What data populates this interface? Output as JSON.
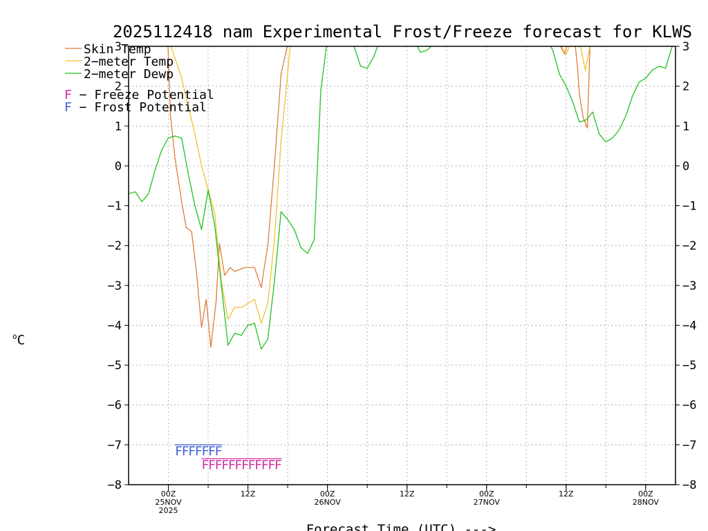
{
  "chart_data": {
    "type": "line",
    "title": "2025112418 nam Experimental Frost/Freeze forecast for KLWS",
    "xlabel": "Forecast Time (UTC) --->",
    "ylabel": "°C",
    "ylabel_parts": {
      "degree": "o",
      "unit": "C"
    },
    "ylim": [
      -8,
      3
    ],
    "y_ticks": [
      3,
      2,
      1,
      0,
      -1,
      -2,
      -3,
      -4,
      -5,
      -6,
      -7,
      -8
    ],
    "y_tick_labels": [
      "3",
      "2",
      "1",
      "0",
      "−1",
      "−2",
      "−3",
      "−4",
      "−5",
      "−6",
      "−7",
      "−8"
    ],
    "x_unit": "forecast hour from 2025-11-24 18Z",
    "xlim": [
      0,
      82.5
    ],
    "x_ticks": [
      {
        "hour": 6,
        "lines": [
          "00Z",
          "25NOV",
          "2025"
        ]
      },
      {
        "hour": 18,
        "lines": [
          "12Z"
        ]
      },
      {
        "hour": 30,
        "lines": [
          "00Z",
          "26NOV"
        ]
      },
      {
        "hour": 42,
        "lines": [
          "12Z"
        ]
      },
      {
        "hour": 54,
        "lines": [
          "00Z",
          "27NOV"
        ]
      },
      {
        "hour": 66,
        "lines": [
          "12Z"
        ]
      },
      {
        "hour": 78,
        "lines": [
          "00Z",
          "28NOV"
        ]
      }
    ],
    "grid": true,
    "legend": {
      "placement": "top-left",
      "entries": [
        {
          "label": "Skin Temp",
          "color": "#e07b39"
        },
        {
          "label": "2−meter Temp",
          "color": "#f2c12e"
        },
        {
          "label": "2−meter Dewp",
          "color": "#22c022"
        }
      ],
      "markers": [
        {
          "symbol": "F",
          "text": " − Freeze Potential",
          "color": "#d030a0"
        },
        {
          "symbol": "F",
          "text": " − Frost Potential",
          "color": "#4060d0"
        }
      ]
    },
    "series": [
      {
        "name": "Skin Temp",
        "color": "#e07b39",
        "x": [
          5.9,
          6.3,
          7,
          8,
          8.7,
          9.5,
          10.2,
          11,
          11.7,
          12.4,
          13.2,
          13.7,
          14.5,
          15.3,
          16,
          17.5,
          19,
          20,
          21,
          22,
          23,
          24.2,
          25,
          25.5
        ],
        "y": [
          3.2,
          1.3,
          0.2,
          -0.9,
          -1.55,
          -1.65,
          -2.6,
          -4.05,
          -3.35,
          -4.55,
          -3.4,
          -1.95,
          -2.75,
          -2.55,
          -2.65,
          -2.55,
          -2.55,
          -3.05,
          -2.0,
          0.0,
          2.3,
          3.2,
          3.2,
          3.2
        ],
        "segments": [
          {
            "x": [
              64.5,
              65.8,
              66.4
            ],
            "y": [
              3.2,
              2.8,
              3.2
            ]
          },
          {
            "x": [
              67.0,
              67.4,
              67.7,
              68.0,
              68.6,
              69.2,
              69.6
            ],
            "y": [
              3.2,
              3.0,
              2.5,
              1.8,
              1.2,
              0.95,
              3.0
            ]
          }
        ]
      },
      {
        "name": "2-meter Temp",
        "color": "#f2c12e",
        "x": [
          6,
          7,
          8,
          9,
          10,
          11,
          12,
          13,
          14,
          15,
          16,
          17,
          18,
          19,
          20,
          21,
          22,
          23,
          24.5,
          25.5
        ],
        "y": [
          3.2,
          2.7,
          2.2,
          1.5,
          0.8,
          0.0,
          -0.6,
          -1.2,
          -2.9,
          -3.85,
          -3.55,
          -3.55,
          -3.45,
          -3.35,
          -3.95,
          -3.45,
          -1.85,
          0.6,
          3.2,
          3.2
        ],
        "segments": [
          {
            "x": [
              64.5,
              66.0,
              67.0
            ],
            "y": [
              3.2,
              2.8,
              3.2
            ]
          },
          {
            "x": [
              67.6,
              68.3,
              68.9,
              69.6
            ],
            "y": [
              3.2,
              2.9,
              2.4,
              3.0
            ]
          }
        ]
      },
      {
        "name": "2-meter Dewp",
        "color": "#22c022",
        "x": [
          0,
          1,
          2,
          3,
          4,
          5,
          6,
          7,
          8,
          9,
          10,
          11,
          12,
          13,
          14,
          15,
          16,
          17,
          18,
          19,
          20,
          21,
          22,
          23,
          24,
          25,
          26,
          27,
          28,
          29,
          30,
          31,
          32,
          33,
          34,
          35,
          36,
          37,
          38,
          39,
          40,
          41,
          42,
          43,
          44,
          45,
          46,
          47,
          48,
          49,
          50,
          51,
          52,
          53,
          54,
          55,
          56,
          57,
          58,
          59,
          60,
          61,
          62,
          63,
          64,
          65,
          66,
          67,
          68,
          69,
          70,
          71,
          72,
          73,
          74,
          75,
          76,
          77,
          78,
          79,
          80,
          81,
          82,
          82.5
        ],
        "y": [
          -0.7,
          -0.65,
          -0.9,
          -0.7,
          -0.1,
          0.4,
          0.7,
          0.75,
          0.7,
          -0.2,
          -1.0,
          -1.6,
          -0.6,
          -1.5,
          -3.0,
          -4.5,
          -4.2,
          -4.25,
          -4.0,
          -3.95,
          -4.6,
          -4.35,
          -2.9,
          -1.15,
          -1.35,
          -1.6,
          -2.05,
          -2.2,
          -1.85,
          1.9,
          3.2,
          3.2,
          3.2,
          3.2,
          3.0,
          2.5,
          2.45,
          2.75,
          3.2,
          3.2,
          3.2,
          3.2,
          3.2,
          3.2,
          2.85,
          2.9,
          3.05,
          3.2,
          3.2,
          3.2,
          3.2,
          3.2,
          3.2,
          3.2,
          3.2,
          3.2,
          3.2,
          3.2,
          3.2,
          3.2,
          3.2,
          3.2,
          3.2,
          3.2,
          2.9,
          2.3,
          2.0,
          1.6,
          1.1,
          1.15,
          1.35,
          0.8,
          0.6,
          0.7,
          0.9,
          1.25,
          1.75,
          2.1,
          2.2,
          2.4,
          2.5,
          2.45,
          3.0,
          3.0
        ]
      }
    ],
    "frost_potential": {
      "symbol": "F",
      "color": "#4060d0",
      "value": -7.0,
      "hours": [
        7,
        8,
        9,
        10,
        11,
        12,
        13
      ]
    },
    "freeze_potential": {
      "symbol": "F",
      "color": "#d030a0",
      "value": -7.35,
      "hours": [
        11,
        12,
        13,
        14,
        15,
        16,
        17,
        18,
        19,
        20,
        21,
        22
      ]
    }
  }
}
